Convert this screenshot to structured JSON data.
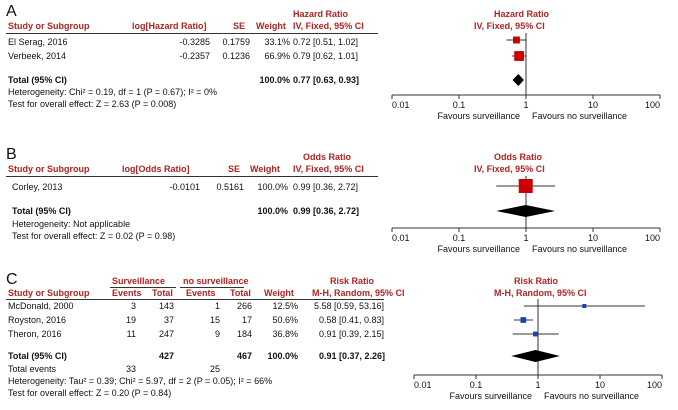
{
  "chart_data": [
    {
      "type": "forest",
      "panel": "A",
      "headers": {
        "study": "Study or Subgroup",
        "est": "log[Hazard Ratio]",
        "se": "SE",
        "weight": "Weight",
        "ratio_title": "Hazard Ratio",
        "ratio_sub": "IV, Fixed, 95% CI",
        "plot_title": "Hazard Ratio",
        "plot_sub": "IV, Fixed, 95% CI"
      },
      "studies": [
        {
          "name": "El Serag, 2016",
          "est": "-0.3285",
          "se": "0.1759",
          "weight": "33.1%",
          "ci_text": "0.72 [0.51, 1.02]",
          "point": 0.72,
          "lower": 0.51,
          "upper": 1.02,
          "w": 33.1
        },
        {
          "name": "Verbeek, 2014",
          "est": "-0.2357",
          "se": "0.1236",
          "weight": "66.9%",
          "ci_text": "0.79 [0.62, 1.01]",
          "point": 0.79,
          "lower": 0.62,
          "upper": 1.01,
          "w": 66.9
        }
      ],
      "total": {
        "label": "Total (95% CI)",
        "weight": "100.0%",
        "ci_text": "0.77 [0.63, 0.93]",
        "point": 0.77,
        "lower": 0.63,
        "upper": 0.93
      },
      "heterogeneity": "Heterogeneity: Chi² = 0.19, df = 1 (P = 0.67); I² = 0%",
      "overall": "Test for overall effect: Z = 2.63 (P = 0.008)",
      "axis": {
        "scale": "log",
        "ticks": [
          0.01,
          0.1,
          1,
          10,
          100
        ],
        "tick_labels": [
          "0.01",
          "0.1",
          "1",
          "10",
          "100"
        ],
        "left_label": "Favours surveillance",
        "right_label": "Favours no surveillance"
      },
      "colors": {
        "study": "#cc0000",
        "total": "#000000"
      }
    },
    {
      "type": "forest",
      "panel": "B",
      "headers": {
        "study": "Study or Subgroup",
        "est": "log[Odds Ratio]",
        "se": "SE",
        "weight": "Weight",
        "ratio_title": "Odds Ratio",
        "ratio_sub": "IV, Fixed, 95% CI",
        "plot_title": "Odds Ratio",
        "plot_sub": "IV, Fixed, 95% CI"
      },
      "studies": [
        {
          "name": "Corley, 2013",
          "est": "-0.0101",
          "se": "0.5161",
          "weight": "100.0%",
          "ci_text": "0.99 [0.36, 2.72]",
          "point": 0.99,
          "lower": 0.36,
          "upper": 2.72,
          "w": 100.0
        }
      ],
      "total": {
        "label": "Total (95% CI)",
        "weight": "100.0%",
        "ci_text": "0.99 [0.36, 2.72]",
        "point": 0.99,
        "lower": 0.36,
        "upper": 2.72
      },
      "heterogeneity": "Heterogeneity: Not applicable",
      "overall": "Test for overall effect: Z = 0.02 (P = 0.98)",
      "axis": {
        "scale": "log",
        "ticks": [
          0.01,
          0.1,
          1,
          10,
          100
        ],
        "tick_labels": [
          "0.01",
          "0.1",
          "1",
          "10",
          "100"
        ],
        "left_label": "Favours surveillance",
        "right_label": "Favours no surveillance"
      },
      "colors": {
        "study": "#cc0000",
        "total": "#000000"
      }
    },
    {
      "type": "forest",
      "panel": "C",
      "headers": {
        "group1": "Surveillance",
        "group2": "no surveillance",
        "study": "Study or Subgroup",
        "events1": "Events",
        "total1": "Total",
        "events2": "Events",
        "total2": "Total",
        "weight": "Weight",
        "ratio_title": "Risk Ratio",
        "ratio_sub": "M-H, Random, 95% CI",
        "plot_title": "Risk Ratio",
        "plot_sub": "M-H, Random, 95% CI"
      },
      "studies": [
        {
          "name": "McDonald, 2000",
          "e1": "3",
          "t1": "143",
          "e2": "1",
          "t2": "266",
          "weight": "12.5%",
          "ci_text": "5.58 [0.59, 53.16]",
          "point": 5.58,
          "lower": 0.59,
          "upper": 53.16,
          "w": 12.5
        },
        {
          "name": "Royston, 2016",
          "e1": "19",
          "t1": "37",
          "e2": "15",
          "t2": "17",
          "weight": "50.6%",
          "ci_text": "0.58 [0.41, 0.83]",
          "point": 0.58,
          "lower": 0.41,
          "upper": 0.83,
          "w": 50.6
        },
        {
          "name": "Theron, 2016",
          "e1": "11",
          "t1": "247",
          "e2": "9",
          "t2": "184",
          "weight": "36.8%",
          "ci_text": "0.91 [0.39, 2.15]",
          "point": 0.91,
          "lower": 0.39,
          "upper": 2.15,
          "w": 36.8
        }
      ],
      "total": {
        "label": "Total (95% CI)",
        "t1": "427",
        "t2": "467",
        "weight": "100.0%",
        "ci_text": "0.91 [0.37, 2.26]",
        "point": 0.91,
        "lower": 0.37,
        "upper": 2.26
      },
      "total_events": {
        "label": "Total events",
        "e1": "33",
        "e2": "25"
      },
      "heterogeneity": "Heterogeneity: Tau² = 0.39; Chi² = 5.97, df = 2 (P = 0.05); I² = 66%",
      "overall": "Test for overall effect: Z = 0.20 (P = 0.84)",
      "axis": {
        "scale": "log",
        "ticks": [
          0.01,
          0.1,
          1,
          10,
          100
        ],
        "tick_labels": [
          "0.01",
          "0.1",
          "1",
          "10",
          "100"
        ],
        "left_label": "Favours surveillance",
        "right_label": "Favours no surveillance"
      },
      "colors": {
        "study": "#1f3fb5",
        "total": "#000000"
      }
    }
  ],
  "panels": {
    "a": "A",
    "b": "B",
    "c": "C"
  }
}
